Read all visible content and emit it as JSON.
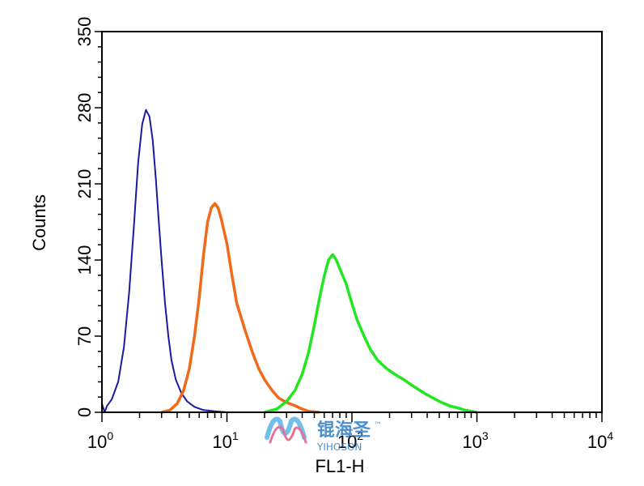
{
  "chart_data": {
    "type": "line",
    "title": "",
    "xlabel": "FL1-H",
    "ylabel": "Counts",
    "x_scale": "log",
    "xlim": [
      1,
      10000
    ],
    "ylim": [
      0,
      350
    ],
    "y_ticks": [
      0,
      70,
      140,
      210,
      280,
      350
    ],
    "x_ticks": [
      {
        "value": 1,
        "label_base": "10",
        "label_exp": "0"
      },
      {
        "value": 10,
        "label_base": "10",
        "label_exp": "1"
      },
      {
        "value": 100,
        "label_base": "10",
        "label_exp": "2"
      },
      {
        "value": 1000,
        "label_base": "10",
        "label_exp": "3"
      },
      {
        "value": 10000,
        "label_base": "10",
        "label_exp": "4"
      }
    ],
    "grid": false,
    "legend": "none",
    "series": [
      {
        "color": "#1a1aa0",
        "points": [
          [
            1.0,
            8
          ],
          [
            1.05,
            0
          ],
          [
            1.1,
            6
          ],
          [
            1.2,
            12
          ],
          [
            1.35,
            28
          ],
          [
            1.5,
            60
          ],
          [
            1.65,
            110
          ],
          [
            1.8,
            170
          ],
          [
            1.95,
            230
          ],
          [
            2.1,
            265
          ],
          [
            2.25,
            278
          ],
          [
            2.4,
            272
          ],
          [
            2.55,
            250
          ],
          [
            2.7,
            215
          ],
          [
            2.85,
            175
          ],
          [
            3.0,
            140
          ],
          [
            3.2,
            100
          ],
          [
            3.4,
            70
          ],
          [
            3.6,
            48
          ],
          [
            3.9,
            30
          ],
          [
            4.3,
            18
          ],
          [
            4.8,
            10
          ],
          [
            5.5,
            5
          ],
          [
            6.5,
            2
          ],
          [
            8,
            1
          ],
          [
            10,
            0
          ]
        ]
      },
      {
        "color": "#f06a1a",
        "points": [
          [
            3.0,
            0
          ],
          [
            3.5,
            2
          ],
          [
            4.0,
            8
          ],
          [
            4.5,
            20
          ],
          [
            5.0,
            40
          ],
          [
            5.5,
            70
          ],
          [
            6.0,
            105
          ],
          [
            6.5,
            145
          ],
          [
            7.0,
            175
          ],
          [
            7.5,
            188
          ],
          [
            8.0,
            192
          ],
          [
            8.5,
            188
          ],
          [
            9.0,
            178
          ],
          [
            10,
            155
          ],
          [
            11,
            125
          ],
          [
            12,
            100
          ],
          [
            14,
            75
          ],
          [
            16,
            55
          ],
          [
            18,
            40
          ],
          [
            20,
            30
          ],
          [
            23,
            20
          ],
          [
            26,
            13
          ],
          [
            30,
            9
          ],
          [
            35,
            6
          ],
          [
            40,
            3
          ],
          [
            45,
            1
          ],
          [
            55,
            0
          ]
        ]
      },
      {
        "color": "#22e622",
        "points": [
          [
            20,
            0
          ],
          [
            25,
            3
          ],
          [
            30,
            10
          ],
          [
            35,
            20
          ],
          [
            40,
            35
          ],
          [
            45,
            55
          ],
          [
            50,
            80
          ],
          [
            55,
            105
          ],
          [
            60,
            125
          ],
          [
            65,
            140
          ],
          [
            70,
            145
          ],
          [
            75,
            140
          ],
          [
            80,
            132
          ],
          [
            90,
            118
          ],
          [
            100,
            100
          ],
          [
            110,
            85
          ],
          [
            125,
            70
          ],
          [
            140,
            58
          ],
          [
            160,
            48
          ],
          [
            190,
            40
          ],
          [
            220,
            35
          ],
          [
            260,
            30
          ],
          [
            300,
            25
          ],
          [
            350,
            20
          ],
          [
            400,
            16
          ],
          [
            500,
            10
          ],
          [
            600,
            6
          ],
          [
            700,
            4
          ],
          [
            800,
            2
          ],
          [
            900,
            1
          ],
          [
            1000,
            0
          ]
        ]
      }
    ]
  },
  "watermark": {
    "text_cn": "锟海圣",
    "text_en": "YIHOSON",
    "tm": "™"
  }
}
